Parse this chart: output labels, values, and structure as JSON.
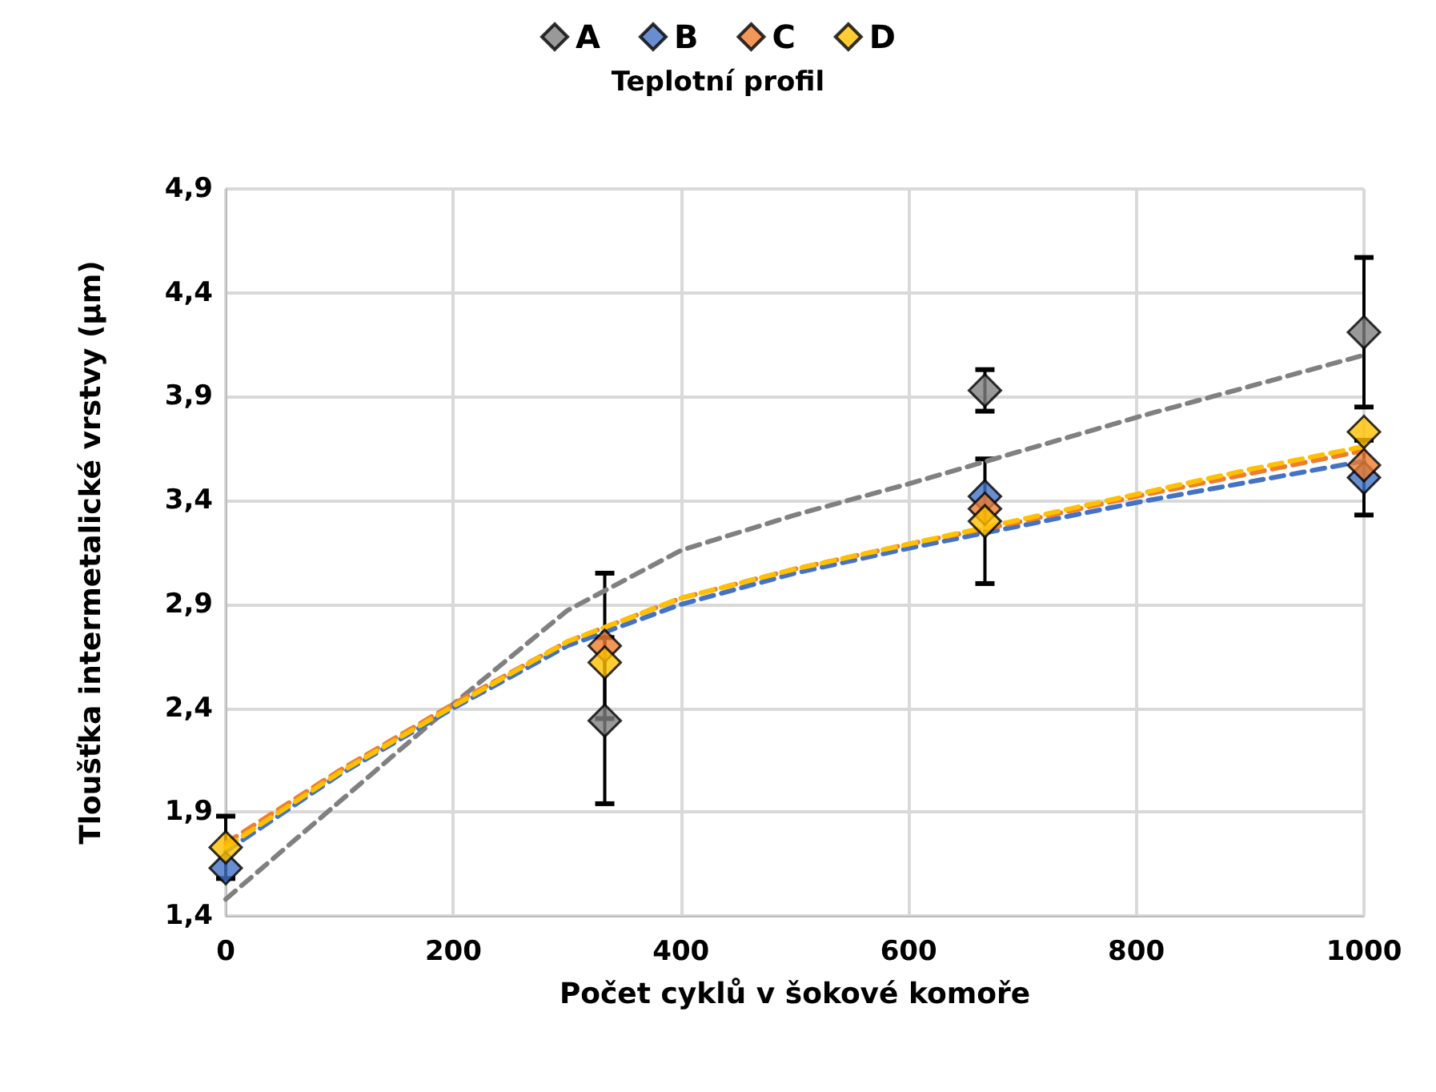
{
  "chart_data": {
    "type": "scatter",
    "title": "Teplotní profil",
    "xlabel": "Počet cyklů v šokové komoře",
    "ylabel": "Tloušťka intermetalické vrstvy (µm)",
    "x": [
      0,
      333,
      667,
      1000
    ],
    "series": [
      {
        "name": "A",
        "color": "#808080",
        "values": [
          null,
          2.34,
          3.93,
          4.21
        ],
        "errors": [
          null,
          0.4,
          0.1,
          0.36
        ]
      },
      {
        "name": "B",
        "color": "#4472c4",
        "values": [
          1.63,
          null,
          3.42,
          3.51
        ],
        "errors": [
          null,
          null,
          null,
          0.18
        ]
      },
      {
        "name": "C",
        "color": "#ed7d31",
        "values": [
          null,
          2.7,
          3.36,
          3.57
        ],
        "errors": [
          null,
          0.35,
          null,
          null
        ]
      },
      {
        "name": "D",
        "color": "#ffc000",
        "values": [
          1.73,
          2.62,
          3.3,
          3.73
        ],
        "errors": [
          0.15,
          null,
          0.3,
          null
        ]
      },
      {
        "type": "line",
        "color": "#808080",
        "line_style": "dashed",
        "marker": "none",
        "x": [
          0,
          100,
          200,
          300,
          400,
          500,
          600,
          700,
          800,
          900,
          1000
        ],
        "values": [
          1.48,
          1.95,
          2.42,
          2.87,
          3.16,
          3.33,
          3.48,
          3.64,
          3.8,
          3.95,
          4.1
        ]
      },
      {
        "type": "line",
        "color": "#4472c4",
        "line_style": "dashed",
        "marker": "none",
        "x": [
          0,
          100,
          200,
          300,
          400,
          500,
          600,
          700,
          800,
          900,
          1000
        ],
        "values": [
          1.71,
          2.08,
          2.4,
          2.7,
          2.9,
          3.05,
          3.17,
          3.28,
          3.39,
          3.49,
          3.59
        ]
      },
      {
        "type": "line",
        "color": "#ed7d31",
        "line_style": "dashed",
        "marker": "none",
        "x": [
          0,
          100,
          200,
          300,
          400,
          500,
          600,
          700,
          800,
          900,
          1000
        ],
        "values": [
          1.75,
          2.1,
          2.42,
          2.72,
          2.93,
          3.07,
          3.19,
          3.3,
          3.42,
          3.53,
          3.64
        ]
      },
      {
        "type": "line",
        "color": "#ffc000",
        "line_style": "dashed",
        "marker": "none",
        "x": [
          0,
          100,
          200,
          300,
          400,
          500,
          600,
          700,
          800,
          900,
          1000
        ],
        "values": [
          1.73,
          2.09,
          2.41,
          2.72,
          2.93,
          3.07,
          3.19,
          3.31,
          3.43,
          3.55,
          3.66
        ]
      }
    ],
    "marker": "diamond",
    "xlim": [
      0,
      1000
    ],
    "xticks": [
      0,
      200,
      400,
      600,
      800,
      1000
    ],
    "ylim": [
      1.4,
      4.9
    ],
    "yticks": [
      {
        "value": 1.4,
        "label": "1,4"
      },
      {
        "value": 1.9,
        "label": "1,9"
      },
      {
        "value": 2.4,
        "label": "2,4"
      },
      {
        "value": 2.9,
        "label": "2,9"
      },
      {
        "value": 3.4,
        "label": "3,4"
      },
      {
        "value": 3.9,
        "label": "3,9"
      },
      {
        "value": 4.4,
        "label": "4,4"
      },
      {
        "value": 4.9,
        "label": "4,9"
      }
    ],
    "grid": true,
    "legend": "top"
  }
}
